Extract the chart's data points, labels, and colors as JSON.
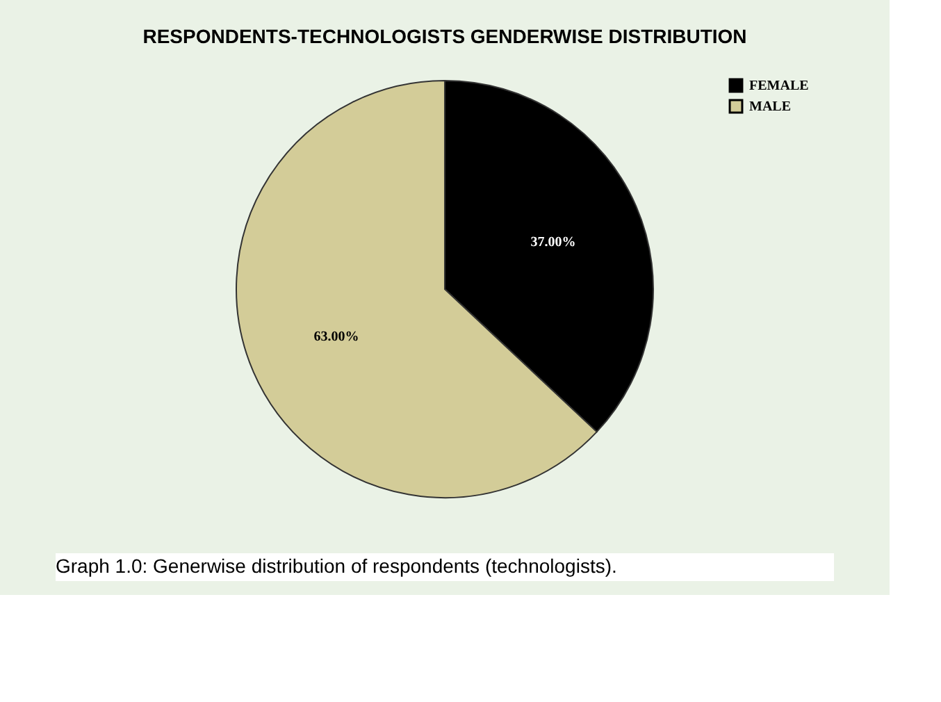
{
  "chart_data": {
    "type": "pie",
    "title": "RESPONDENTS-TECHNOLOGISTS GENDERWISE DISTRIBUTION",
    "categories": [
      "FEMALE",
      "MALE"
    ],
    "values": [
      37,
      63
    ],
    "colors": [
      "#000000",
      "#d3cc98"
    ],
    "value_labels": [
      "37.00%",
      "63.00%"
    ],
    "legend": "top right",
    "annotations": [
      "Graph 1.0: Generwise distribution of respondents (technologists)."
    ]
  }
}
